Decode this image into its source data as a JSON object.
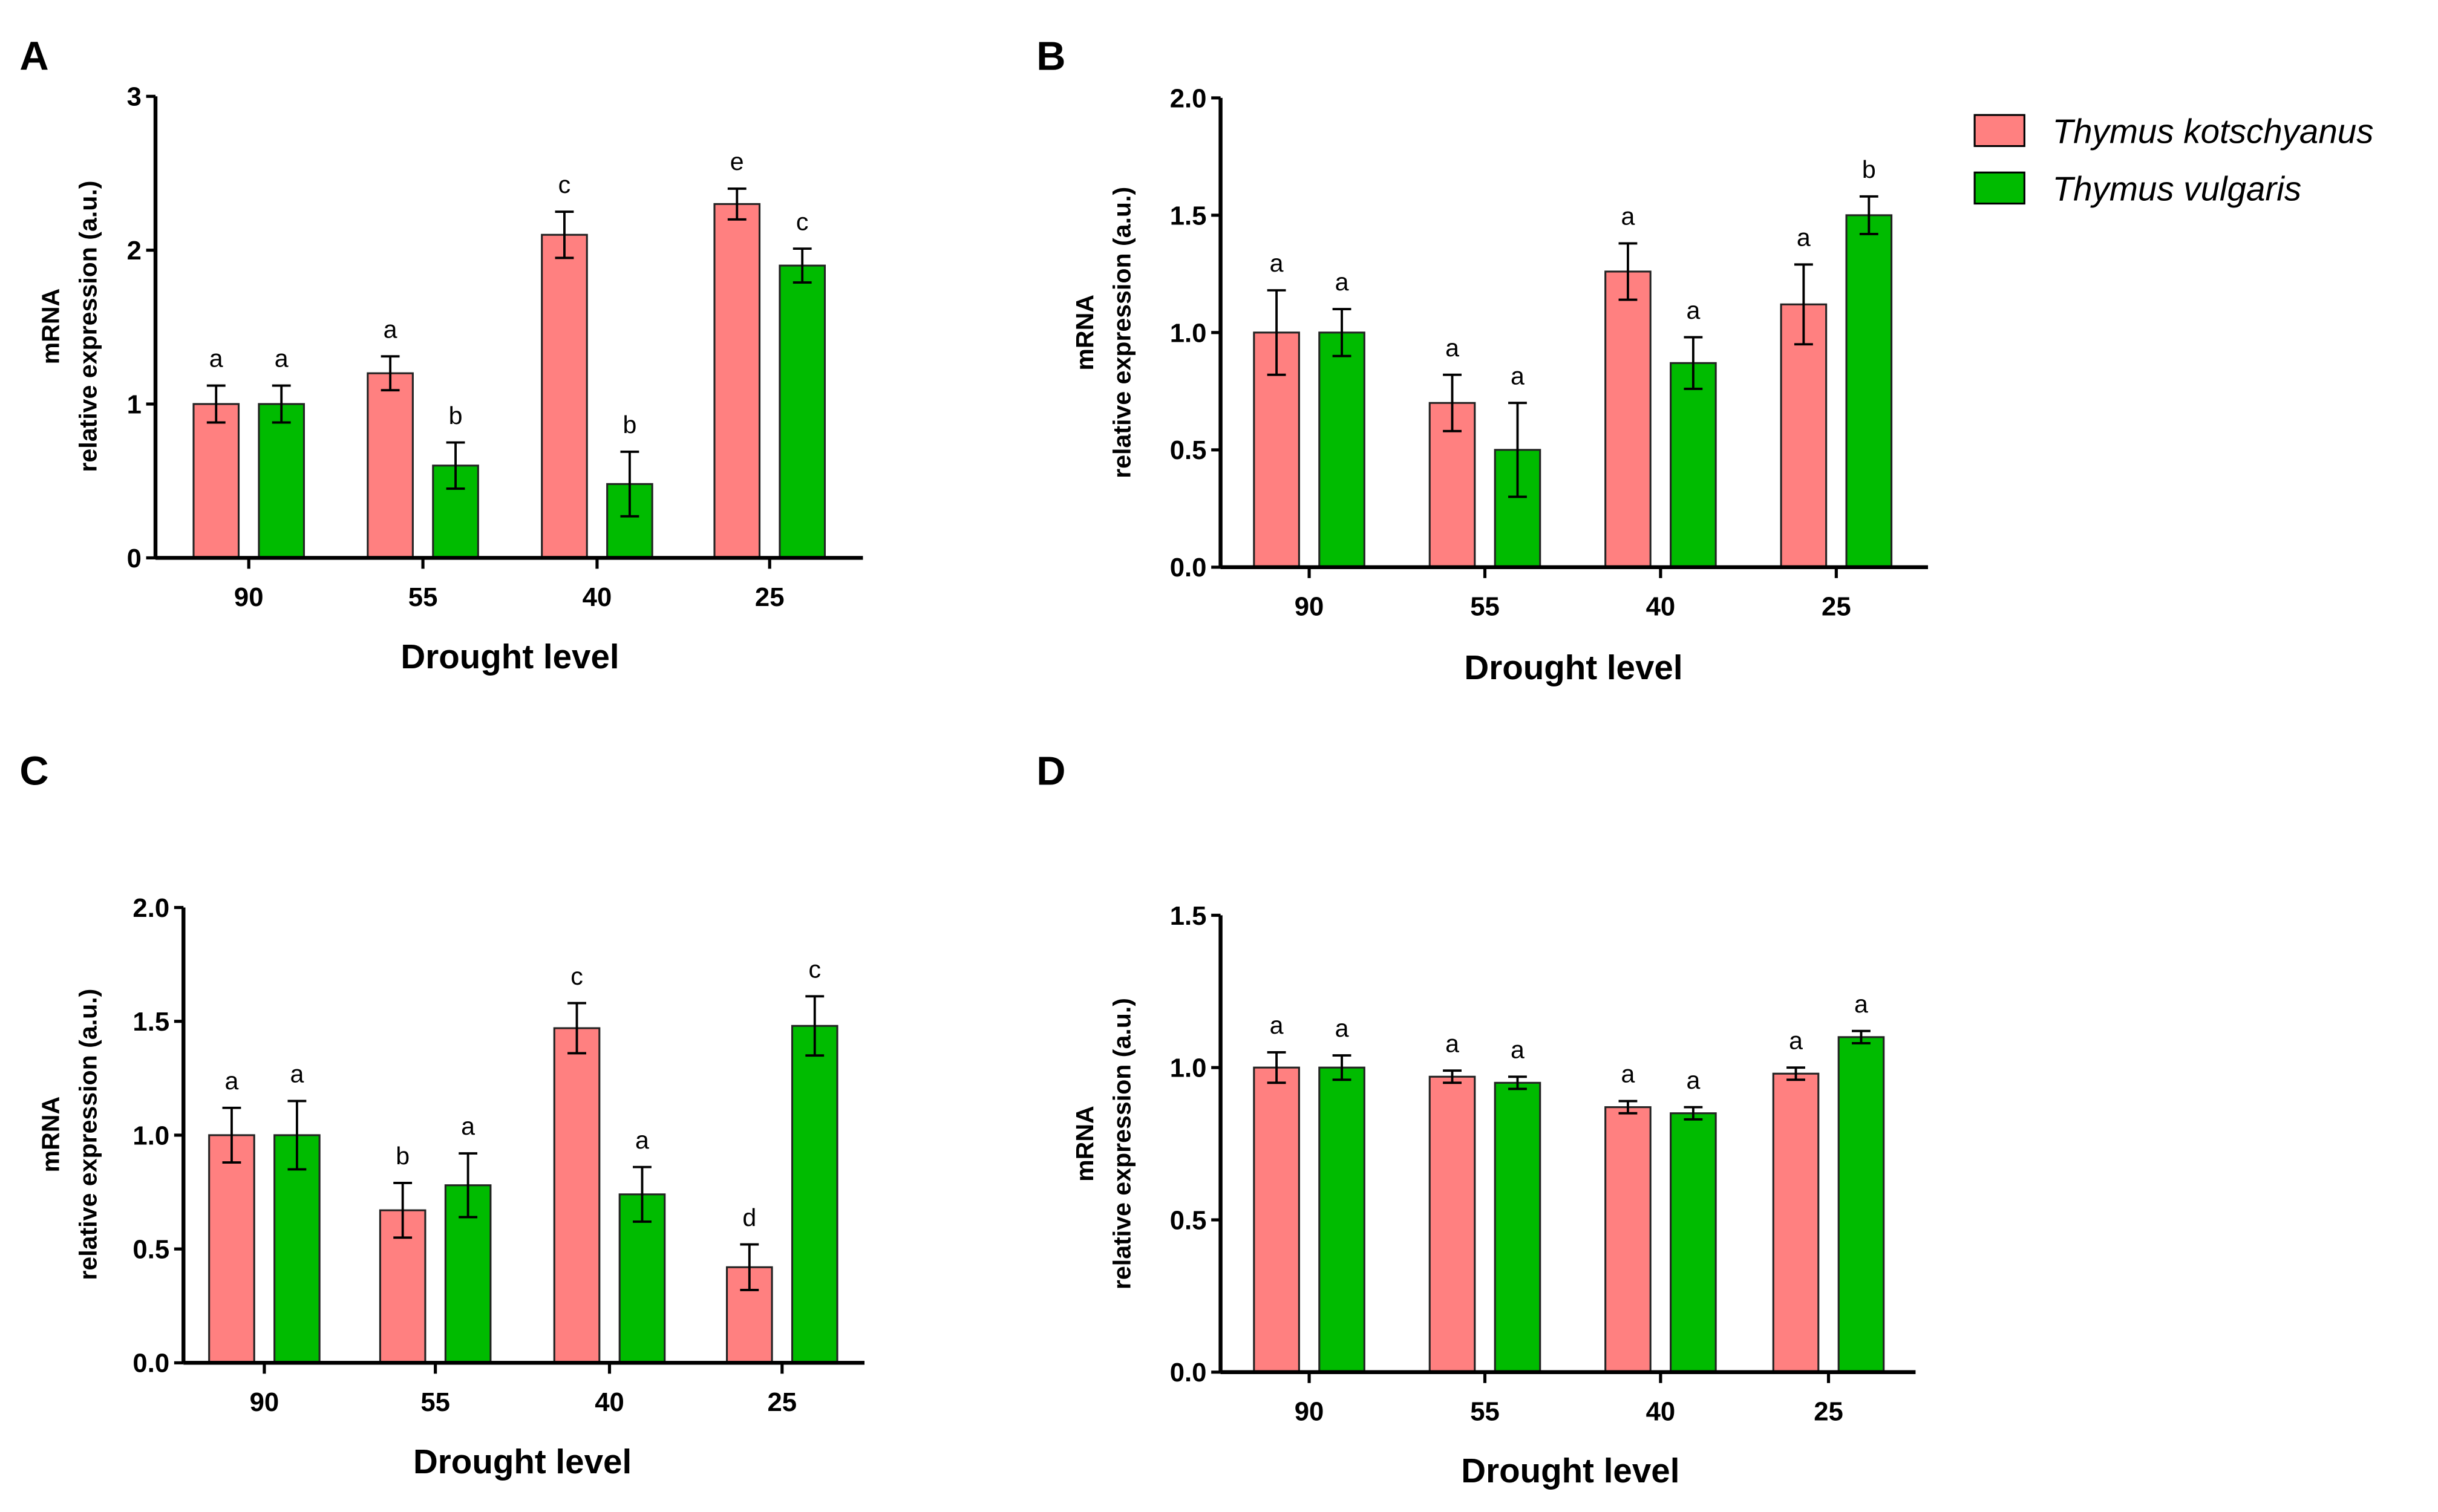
{
  "colors": {
    "kotschyanus": "#ff8080",
    "vulgaris": "#00bb00",
    "axis": "#000000"
  },
  "legend": [
    {
      "name": "Thymus kotschyanus",
      "color": "#ff8080"
    },
    {
      "name": "Thymus vulgaris",
      "color": "#00bb00"
    }
  ],
  "chart_data": [
    {
      "panel": "A",
      "type": "bar",
      "categories": [
        "90",
        "55",
        "40",
        "25"
      ],
      "xlabel": "Drought level",
      "ylabel": [
        "mRNA",
        "relative expression (a.u.)"
      ],
      "ylim": [
        0,
        3
      ],
      "yticks": [
        "0",
        "1",
        "2",
        "3"
      ],
      "ytick_values": [
        0,
        1,
        2,
        3
      ],
      "series": [
        {
          "name": "Thymus kotschyanus",
          "values": [
            1.0,
            1.2,
            2.1,
            2.3
          ],
          "errors": [
            0.12,
            0.11,
            0.15,
            0.1
          ],
          "letters": [
            "a",
            "a",
            "c",
            "e"
          ]
        },
        {
          "name": "Thymus vulgaris",
          "values": [
            1.0,
            0.6,
            0.48,
            1.9
          ],
          "errors": [
            0.12,
            0.15,
            0.21,
            0.11
          ],
          "letters": [
            "a",
            "b",
            "b",
            "c"
          ]
        }
      ]
    },
    {
      "panel": "B",
      "type": "bar",
      "categories": [
        "90",
        "55",
        "40",
        "25"
      ],
      "xlabel": "Drought level",
      "ylabel": [
        "mRNA",
        "relative expression (a.u.)"
      ],
      "ylim": [
        0,
        2
      ],
      "yticks": [
        "0.0",
        "0.5",
        "1.0",
        "1.5",
        "2.0"
      ],
      "ytick_values": [
        0,
        0.5,
        1,
        1.5,
        2
      ],
      "series": [
        {
          "name": "Thymus kotschyanus",
          "values": [
            1.0,
            0.7,
            1.26,
            1.12
          ],
          "errors": [
            0.18,
            0.12,
            0.12,
            0.17
          ],
          "letters": [
            "a",
            "a",
            "a",
            "a"
          ]
        },
        {
          "name": "Thymus vulgaris",
          "values": [
            1.0,
            0.5,
            0.87,
            1.5
          ],
          "errors": [
            0.1,
            0.2,
            0.11,
            0.08
          ],
          "letters": [
            "a",
            "a",
            "a",
            "b"
          ]
        }
      ]
    },
    {
      "panel": "C",
      "type": "bar",
      "categories": [
        "90",
        "55",
        "40",
        "25"
      ],
      "xlabel": "Drought level",
      "ylabel": [
        "mRNA",
        "relative expression (a.u.)"
      ],
      "ylim": [
        0,
        2
      ],
      "yticks": [
        "0.0",
        "0.5",
        "1.0",
        "1.5",
        "2.0"
      ],
      "ytick_values": [
        0,
        0.5,
        1,
        1.5,
        2
      ],
      "series": [
        {
          "name": "Thymus kotschyanus",
          "values": [
            1.0,
            0.67,
            1.47,
            0.42
          ],
          "errors": [
            0.12,
            0.12,
            0.11,
            0.1
          ],
          "letters": [
            "a",
            "b",
            "c",
            "d"
          ]
        },
        {
          "name": "Thymus vulgaris",
          "values": [
            1.0,
            0.78,
            0.74,
            1.48
          ],
          "errors": [
            0.15,
            0.14,
            0.12,
            0.13
          ],
          "letters": [
            "a",
            "a",
            "a",
            "c"
          ]
        }
      ]
    },
    {
      "panel": "D",
      "type": "bar",
      "categories": [
        "90",
        "55",
        "40",
        "25"
      ],
      "xlabel": "Drought level",
      "ylabel": [
        "mRNA",
        "relative expression (a.u.)"
      ],
      "ylim": [
        0,
        1.5
      ],
      "yticks": [
        "0.0",
        "0.5",
        "1.0",
        "1.5"
      ],
      "ytick_values": [
        0,
        0.5,
        1,
        1.5
      ],
      "series": [
        {
          "name": "Thymus kotschyanus",
          "values": [
            1.0,
            0.97,
            0.87,
            0.98
          ],
          "errors": [
            0.05,
            0.02,
            0.02,
            0.02
          ],
          "letters": [
            "a",
            "a",
            "a",
            "a"
          ]
        },
        {
          "name": "Thymus vulgaris",
          "values": [
            1.0,
            0.95,
            0.85,
            1.1
          ],
          "errors": [
            0.04,
            0.02,
            0.02,
            0.02
          ],
          "letters": [
            "a",
            "a",
            "a",
            "a"
          ]
        }
      ]
    }
  ]
}
